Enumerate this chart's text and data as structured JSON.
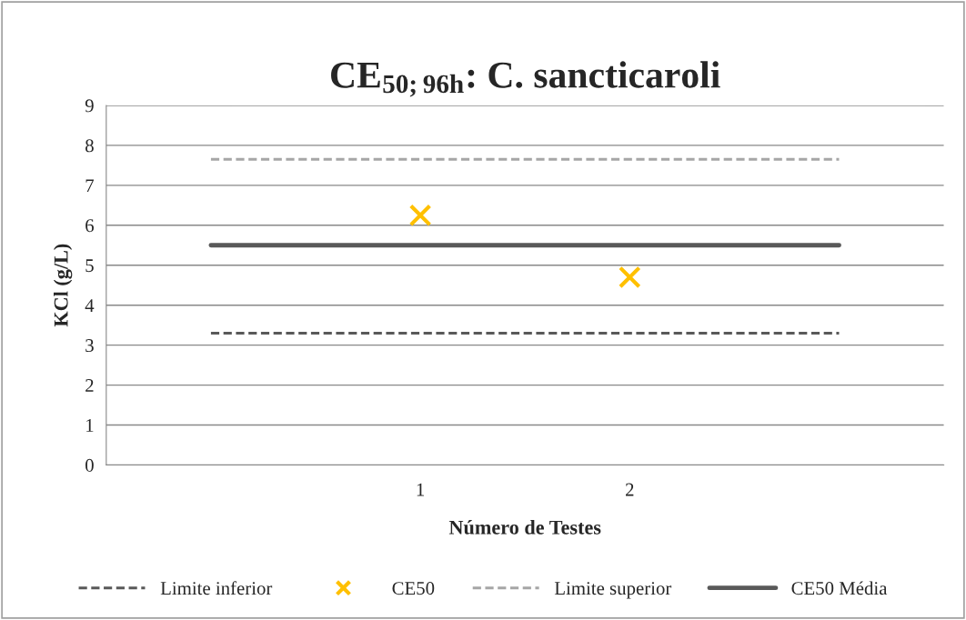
{
  "chart_data": {
    "type": "line",
    "title": "CE$_{50;96h}$: C. sancticaroli",
    "xlabel": "Número de Testes",
    "ylabel": "KCl (g/L)",
    "categories": [
      null,
      "1",
      "2",
      null
    ],
    "series": [
      {
        "name": "Limite inferior",
        "color": "#595959",
        "line_style": "dashed",
        "values": [
          3.3,
          3.3,
          3.3,
          3.3
        ]
      },
      {
        "name": "CE50",
        "type": "scatter",
        "color": "#ffc000",
        "marker": "cross",
        "values": [
          null,
          6.25,
          4.7,
          null
        ]
      },
      {
        "name": "Limite superior",
        "color": "#a6a6a6",
        "line_style": "dashed",
        "values": [
          7.65,
          7.65,
          7.65,
          7.65
        ]
      },
      {
        "name": "CE50 Média",
        "color": "#595959",
        "line_style": "solid",
        "values": [
          5.5,
          5.5,
          5.5,
          5.5
        ]
      }
    ],
    "ylim": [
      0,
      9
    ],
    "yticks": [
      0,
      1,
      2,
      3,
      4,
      5,
      6,
      7,
      8,
      9
    ],
    "grid": "y",
    "legend": "bottom"
  }
}
